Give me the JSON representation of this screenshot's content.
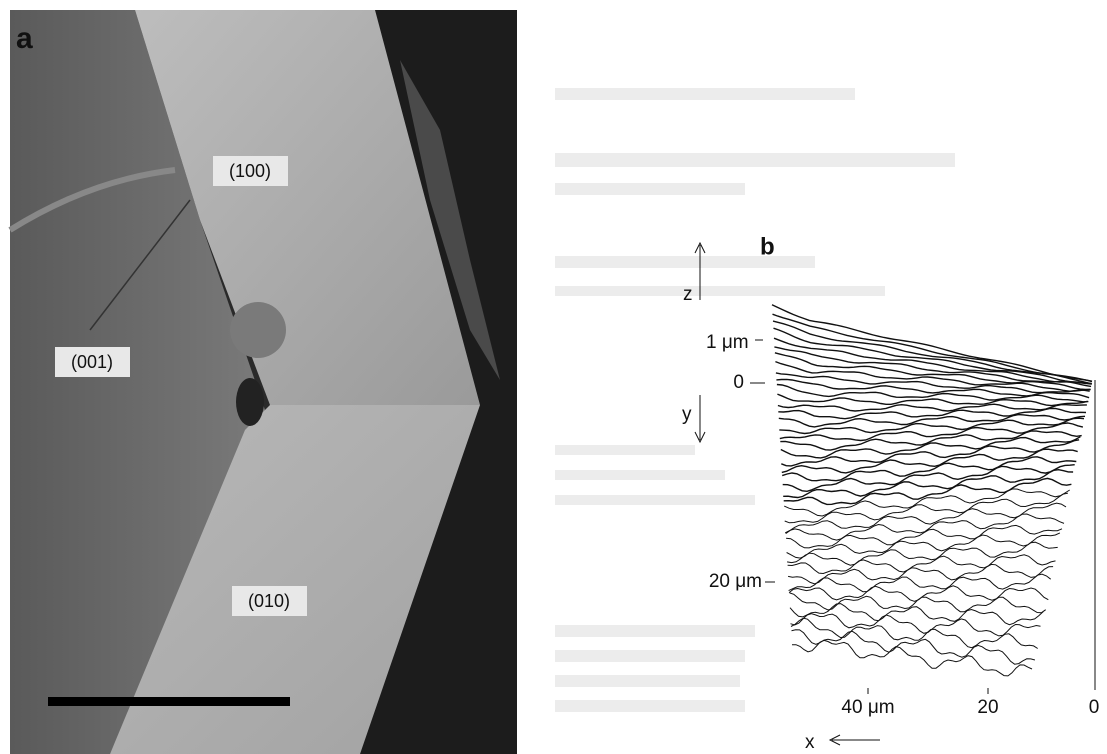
{
  "panel_a": {
    "label": "a",
    "faces": [
      "(100)",
      "(001)",
      "(010)"
    ]
  },
  "panel_b": {
    "label": "b",
    "z_axis": "z",
    "y_axis": "y",
    "x_axis": "x",
    "z_scale": "1 μm",
    "y_ticks": [
      "0",
      "20 μm"
    ],
    "x_ticks": [
      "40 μm",
      "20",
      "0"
    ]
  }
}
